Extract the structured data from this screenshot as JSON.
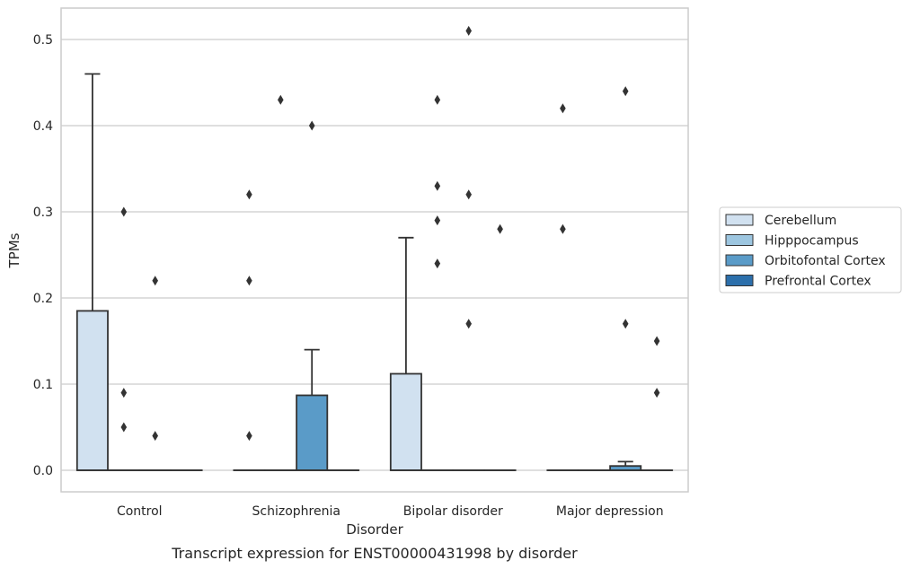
{
  "chart_data": {
    "type": "box",
    "title": "",
    "caption": "Transcript expression for ENST00000431998 by disorder",
    "xlabel": "Disorder",
    "ylabel": "TPMs",
    "ylim": [
      -0.025,
      0.53
    ],
    "yticks": [
      0.0,
      0.1,
      0.2,
      0.3,
      0.4,
      0.5
    ],
    "ytick_labels": [
      "0.0",
      "0.1",
      "0.2",
      "0.3",
      "0.4",
      "0.5"
    ],
    "grid": "horizontal",
    "legend_position": "right",
    "categories": [
      "Control",
      "Schizophrenia",
      "Bipolar disorder",
      "Major depression"
    ],
    "series": [
      {
        "name": "Cerebellum",
        "color": "#d1e1f0",
        "boxes": [
          {
            "q1": 0.0,
            "median": 0.0,
            "q3": 0.185,
            "whisker_low": 0.0,
            "whisker_high": 0.46,
            "outliers": []
          },
          {
            "q1": 0.0,
            "median": 0.0,
            "q3": 0.0,
            "whisker_low": 0.0,
            "whisker_high": 0.0,
            "outliers": [
              0.32,
              0.22,
              0.04
            ]
          },
          {
            "q1": 0.0,
            "median": 0.0,
            "q3": 0.112,
            "whisker_low": 0.0,
            "whisker_high": 0.27,
            "outliers": []
          },
          {
            "q1": 0.0,
            "median": 0.0,
            "q3": 0.0,
            "whisker_low": 0.0,
            "whisker_high": 0.0,
            "outliers": [
              0.42,
              0.28
            ]
          }
        ]
      },
      {
        "name": "Hipppocampus",
        "color": "#9dc6e0",
        "boxes": [
          {
            "q1": 0.0,
            "median": 0.0,
            "q3": 0.0,
            "whisker_low": 0.0,
            "whisker_high": 0.0,
            "outliers": [
              0.3,
              0.09,
              0.05
            ]
          },
          {
            "q1": 0.0,
            "median": 0.0,
            "q3": 0.0,
            "whisker_low": 0.0,
            "whisker_high": 0.0,
            "outliers": [
              0.43
            ]
          },
          {
            "q1": 0.0,
            "median": 0.0,
            "q3": 0.0,
            "whisker_low": 0.0,
            "whisker_high": 0.0,
            "outliers": [
              0.33,
              0.29,
              0.24,
              0.43
            ]
          },
          {
            "q1": 0.0,
            "median": 0.0,
            "q3": 0.0,
            "whisker_low": 0.0,
            "whisker_high": 0.0,
            "outliers": []
          }
        ]
      },
      {
        "name": "Orbitofontal Cortex",
        "color": "#5a9bc8",
        "boxes": [
          {
            "q1": 0.0,
            "median": 0.0,
            "q3": 0.0,
            "whisker_low": 0.0,
            "whisker_high": 0.0,
            "outliers": [
              0.22,
              0.04
            ]
          },
          {
            "q1": 0.0,
            "median": 0.0,
            "q3": 0.087,
            "whisker_low": 0.0,
            "whisker_high": 0.14,
            "outliers": [
              0.4
            ]
          },
          {
            "q1": 0.0,
            "median": 0.0,
            "q3": 0.0,
            "whisker_low": 0.0,
            "whisker_high": 0.0,
            "outliers": [
              0.51,
              0.32,
              0.17
            ]
          },
          {
            "q1": 0.0,
            "median": 0.0,
            "q3": 0.005,
            "whisker_low": 0.0,
            "whisker_high": 0.01,
            "outliers": [
              0.44,
              0.17
            ]
          }
        ]
      },
      {
        "name": "Prefrontal Cortex",
        "color": "#2c6fab",
        "boxes": [
          {
            "q1": 0.0,
            "median": 0.0,
            "q3": 0.0,
            "whisker_low": 0.0,
            "whisker_high": 0.0,
            "outliers": []
          },
          {
            "q1": 0.0,
            "median": 0.0,
            "q3": 0.0,
            "whisker_low": 0.0,
            "whisker_high": 0.0,
            "outliers": []
          },
          {
            "q1": 0.0,
            "median": 0.0,
            "q3": 0.0,
            "whisker_low": 0.0,
            "whisker_high": 0.0,
            "outliers": [
              0.28
            ]
          },
          {
            "q1": 0.0,
            "median": 0.0,
            "q3": 0.0,
            "whisker_low": 0.0,
            "whisker_high": 0.0,
            "outliers": [
              0.15,
              0.09
            ]
          }
        ]
      }
    ]
  }
}
